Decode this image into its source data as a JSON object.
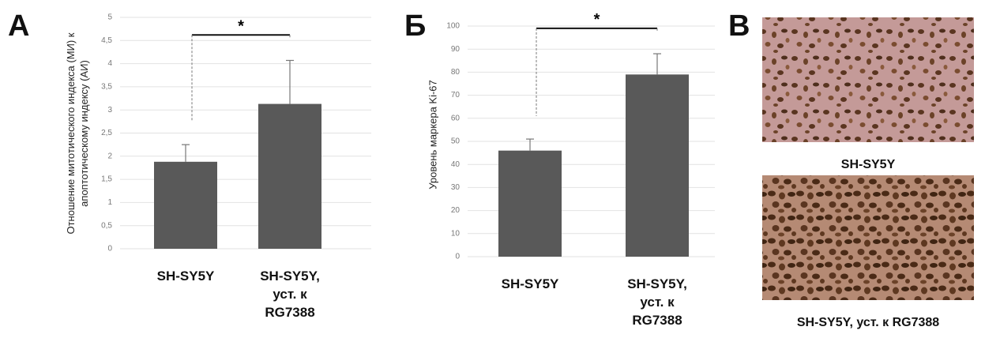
{
  "chart_data": [
    {
      "type": "bar",
      "panel": "А",
      "y_label": "Отношение митотического индекса (МИ) к апоптотическому индексу (АИ)",
      "categories": [
        "SH-SY5Y",
        "SH-SY5Y, уст. к RG7388"
      ],
      "values": [
        1.88,
        3.13
      ],
      "errors": [
        0.37,
        0.94
      ],
      "color": "#595959",
      "annotation": "*",
      "ylim": [
        0,
        5
      ],
      "yticks": [
        0,
        {
          "value": 0.5,
          "label": "0,5"
        },
        1,
        {
          "value": 1.5,
          "label": "1,5"
        },
        2,
        {
          "value": 2.5,
          "label": "2,5"
        },
        3,
        {
          "value": 3.5,
          "label": "3,5"
        },
        4,
        {
          "value": 4.5,
          "label": "4,5"
        },
        5
      ],
      "grid": true
    },
    {
      "type": "bar",
      "panel": "Б",
      "y_label": "Уровень маркера Ki-67",
      "categories": [
        "SH-SY5Y",
        "SH-SY5Y, уст. к RG7388"
      ],
      "values": [
        46,
        79
      ],
      "errors": [
        5,
        9
      ],
      "color": "#595959",
      "annotation": "*",
      "ylim": [
        0,
        100
      ],
      "yticks": [
        0,
        10,
        20,
        30,
        40,
        50,
        60,
        70,
        80,
        90,
        100
      ],
      "grid": true
    }
  ],
  "panel_c": {
    "panel": "В",
    "captions": [
      "SH-SY5Y",
      "SH-SY5Y,  уст. к RG7388"
    ]
  }
}
